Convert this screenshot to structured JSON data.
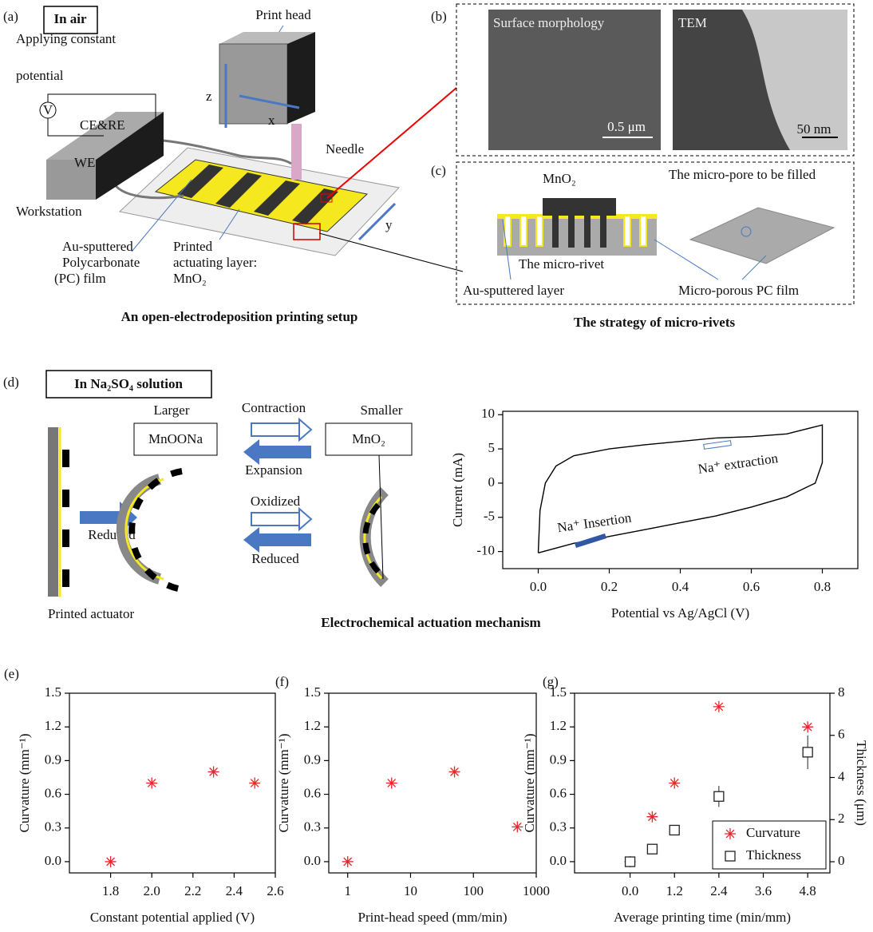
{
  "panels": {
    "a": {
      "label": "(a)",
      "box": "In air",
      "print_head": "Print head",
      "potential": [
        "Applying constant",
        "potential"
      ],
      "meter": "V",
      "ce_re": "CE&RE",
      "we": "WE",
      "z": "z",
      "x": "x",
      "y": "y",
      "needle": "Needle",
      "workstation": "Workstation",
      "film": [
        "Au-sputtered",
        "Polycarbonate",
        "(PC) film"
      ],
      "layer": [
        "Printed",
        "actuating layer:",
        "MnO₂"
      ],
      "caption": "An open-electrodeposition printing setup"
    },
    "b": {
      "label": "(b)",
      "sem": "Surface morphology",
      "sem_scale": "0.5 μm",
      "tem": "TEM",
      "tem_scale": "50 nm"
    },
    "c": {
      "label": "(c)",
      "mno2": "MnO₂",
      "pore": "The micro-pore to be filled",
      "rivet": "The micro-rivet",
      "au": "Au-sputtered layer",
      "pc": "Micro-porous PC film",
      "caption": "The strategy of micro-rivets"
    },
    "d": {
      "label": "(d)",
      "box": "In Na₂SO₄ solution",
      "larger": "Larger",
      "mnoona": "MnOONa",
      "contraction": "Contraction",
      "expansion": "Expansion",
      "smaller": "Smaller",
      "mno2": "MnO₂",
      "reduced1": "Reduced",
      "oxidized": "Oxidized",
      "reduced2": "Reduced",
      "actuator": "Printed actuator",
      "caption": "Electrochemical actuation mechanism"
    }
  },
  "chart_data": [
    {
      "type": "line",
      "x_label": "Potential vs Ag/AgCl (V)",
      "y_label": "Current (mA)",
      "xlim": [
        -0.1,
        0.9
      ],
      "xticks": [
        {
          "value": 0,
          "label": "0.0"
        },
        0.2,
        0.4,
        0.6,
        0.8
      ],
      "ylim": [
        -12.5,
        10.5
      ],
      "yticks": [
        -10,
        -5,
        0,
        5,
        10
      ],
      "annotations": [
        "Na⁺ extraction",
        "Na⁺ Insertion"
      ],
      "series": [
        {
          "color": "#000000",
          "x": [
            0,
            0.005,
            0.02,
            0.05,
            0.1,
            0.2,
            0.3,
            0.4,
            0.5,
            0.6,
            0.7,
            0.8,
            0.8,
            0.78,
            0.7,
            0.6,
            0.5,
            0.4,
            0.3,
            0.2,
            0.1,
            0
          ],
          "values": [
            -10.2,
            -4,
            0,
            2.5,
            4,
            5,
            5.6,
            6.1,
            6.6,
            6.8,
            7.2,
            8.5,
            3,
            0,
            -2,
            -3.5,
            -4.8,
            -5.8,
            -6.8,
            -7.8,
            -8.8,
            -10.2
          ]
        }
      ]
    },
    {
      "type": "scatter",
      "label": "(e)",
      "x_label": "Constant potential applied (V)",
      "y_label": "Curvature (mm⁻¹)",
      "xlim": [
        1.6,
        2.6
      ],
      "xticks": [
        1.8,
        {
          "value": 2,
          "label": "2.0"
        },
        2.2,
        2.4,
        2.6
      ],
      "ylim": [
        -0.1,
        1.5
      ],
      "yticks": [
        {
          "value": 0,
          "label": "0.0"
        },
        0.3,
        0.6,
        0.9,
        1.2,
        1.5
      ],
      "series": [
        {
          "color": "#e8262a",
          "marker": "star",
          "x": [
            1.8,
            2.0,
            2.3,
            2.5
          ],
          "values": [
            0,
            0.7,
            0.8,
            0.7
          ]
        }
      ]
    },
    {
      "type": "scatter",
      "label": "(f)",
      "x_label": "Print-head speed (mm/min)",
      "y_label": "Curvature (mm⁻¹)",
      "xscale": "log",
      "xlim": [
        0.5,
        1000
      ],
      "xticks": [
        1,
        10,
        100,
        1000
      ],
      "ylim": [
        -0.1,
        1.5
      ],
      "yticks": [
        {
          "value": 0,
          "label": "0.0"
        },
        0.3,
        0.6,
        0.9,
        1.2,
        1.5
      ],
      "series": [
        {
          "color": "#e8262a",
          "marker": "star",
          "x": [
            1,
            5,
            50,
            500
          ],
          "values": [
            0,
            0.7,
            0.8,
            0.31
          ]
        }
      ]
    },
    {
      "type": "scatter",
      "label": "(g)",
      "x_label": "Average printing time (min/mm)",
      "y_label": "Curvature (mm⁻¹)",
      "y2_label": "Thickness (μm)",
      "xlim": [
        -1.5,
        5.4
      ],
      "xticks": [
        {
          "value": 0,
          "label": "0.0"
        },
        1.2,
        2.4,
        3.6,
        4.8
      ],
      "ylim": [
        -0.1,
        1.5
      ],
      "yticks": [
        {
          "value": 0,
          "label": "0.0"
        },
        0.3,
        0.6,
        0.9,
        1.2,
        1.5
      ],
      "y2lim": [
        -0.53,
        8
      ],
      "y2ticks": [
        0,
        2,
        4,
        6,
        8
      ],
      "legend": "bottom-right",
      "series": [
        {
          "name": "Curvature",
          "color": "#e8262a",
          "marker": "star",
          "x": [
            0,
            0.6,
            1.2,
            2.4,
            4.8
          ],
          "values": [
            0,
            0.4,
            0.7,
            1.38,
            1.2
          ]
        },
        {
          "name": "Thickness",
          "color": "#222222",
          "marker": "square",
          "axis": "y2",
          "x": [
            0,
            0.6,
            1.2,
            2.4,
            4.8
          ],
          "values": [
            0,
            0.6,
            1.5,
            3.1,
            5.2
          ],
          "errors": [
            0,
            0,
            0,
            0.5,
            0.8
          ]
        }
      ]
    }
  ]
}
